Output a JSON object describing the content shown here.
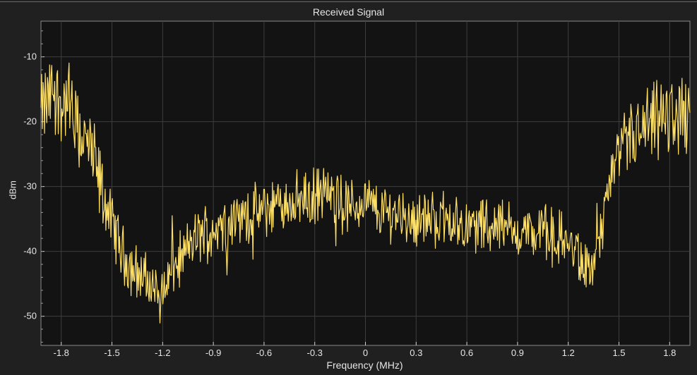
{
  "window": {
    "title": "Received Signal"
  },
  "chart_data": {
    "type": "line",
    "title": "Received Signal",
    "xlabel": "Frequency (MHz)",
    "ylabel": "dBm",
    "xlim": [
      -1.92,
      1.92
    ],
    "ylim": [
      -54.5,
      -4.5
    ],
    "x_ticks": [
      -1.8,
      -1.5,
      -1.2,
      -0.9,
      -0.6,
      -0.3,
      0,
      0.3,
      0.6,
      0.9,
      1.2,
      1.5,
      1.8
    ],
    "x_tick_labels": [
      "-1.8",
      "-1.5",
      "-1.2",
      "-0.9",
      "-0.6",
      "-0.3",
      "0",
      "0.3",
      "0.6",
      "0.9",
      "1.2",
      "1.5",
      "1.8"
    ],
    "y_ticks": [
      -50,
      -40,
      -30,
      -20,
      -10
    ],
    "y_tick_labels": [
      "-50",
      "-40",
      "-30",
      "-20",
      "-10"
    ],
    "grid": true,
    "series": [
      {
        "color": "#ffe066",
        "x": [
          -1.92,
          -1.88,
          -1.84,
          -1.8,
          -1.76,
          -1.72,
          -1.68,
          -1.64,
          -1.6,
          -1.56,
          -1.52,
          -1.48,
          -1.44,
          -1.4,
          -1.36,
          -1.32,
          -1.28,
          -1.24,
          -1.2,
          -1.16,
          -1.12,
          -1.08,
          -1.04,
          -1.0,
          -0.96,
          -0.92,
          -0.88,
          -0.84,
          -0.8,
          -0.76,
          -0.72,
          -0.68,
          -0.64,
          -0.6,
          -0.56,
          -0.52,
          -0.48,
          -0.44,
          -0.4,
          -0.36,
          -0.32,
          -0.28,
          -0.24,
          -0.2,
          -0.16,
          -0.12,
          -0.08,
          -0.04,
          0.0,
          0.04,
          0.08,
          0.12,
          0.16,
          0.2,
          0.24,
          0.28,
          0.32,
          0.36,
          0.4,
          0.44,
          0.48,
          0.52,
          0.56,
          0.6,
          0.64,
          0.68,
          0.72,
          0.76,
          0.8,
          0.84,
          0.88,
          0.92,
          0.96,
          1.0,
          1.04,
          1.08,
          1.12,
          1.16,
          1.2,
          1.24,
          1.28,
          1.32,
          1.36,
          1.4,
          1.44,
          1.48,
          1.52,
          1.56,
          1.6,
          1.64,
          1.68,
          1.72,
          1.76,
          1.8,
          1.84,
          1.88,
          1.92
        ],
        "y": [
          -19,
          -17,
          -15,
          -18,
          -16,
          -21,
          -22,
          -24,
          -27,
          -31,
          -34,
          -37,
          -40,
          -42,
          -43,
          -44,
          -45,
          -46,
          -46,
          -44,
          -42,
          -41,
          -39,
          -38,
          -37,
          -37,
          -36,
          -36,
          -35,
          -35,
          -35,
          -34,
          -34,
          -34,
          -33,
          -33,
          -33,
          -32,
          -32,
          -32,
          -32,
          -31,
          -31,
          -32,
          -32,
          -33,
          -33,
          -33,
          -32,
          -33,
          -34,
          -34,
          -34,
          -34,
          -35,
          -35,
          -35,
          -35,
          -35,
          -35,
          -35,
          -35,
          -36,
          -36,
          -36,
          -36,
          -36,
          -36,
          -36,
          -36,
          -37,
          -37,
          -37,
          -37,
          -37,
          -37,
          -38,
          -38,
          -39,
          -40,
          -42,
          -43,
          -42,
          -36,
          -30,
          -27,
          -25,
          -23,
          -22,
          -22,
          -21,
          -20,
          -20,
          -19,
          -19,
          -19,
          -19
        ]
      }
    ]
  }
}
